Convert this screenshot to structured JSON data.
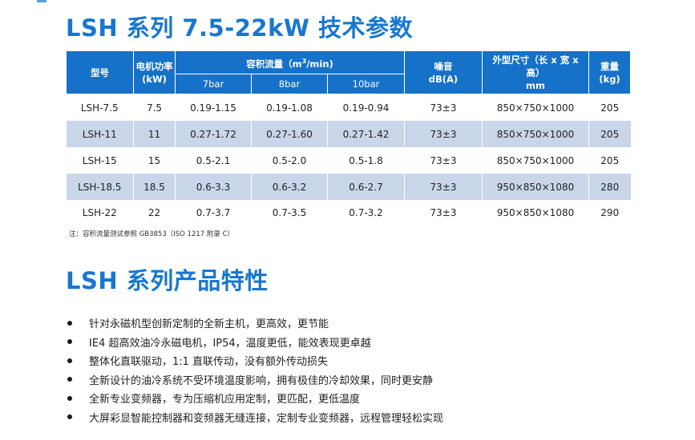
{
  "title1": "LSH 系列 7.5-22kW 技术参数",
  "title2": "LSH 系列产品特性",
  "table": {
    "headers": {
      "model": "型号",
      "power": "电机功率",
      "power_unit": "(kW)",
      "flow_prefix": "容积流量（m",
      "flow_sup": "3",
      "flow_suffix": "/min)",
      "noise": "噪音",
      "noise_unit": "dB(A)",
      "dims": "外型尺寸（长 x 宽 x 高）",
      "dims_unit": "mm",
      "weight": "重量",
      "weight_unit": "(kg)",
      "p7": "7bar",
      "p8": "8bar",
      "p10": "10bar"
    },
    "rows": [
      {
        "model": "LSH-7.5",
        "power": "7.5",
        "f7": "0.19-1.15",
        "f8": "0.19-1.08",
        "f10": "0.19-0.94",
        "noise": "73±3",
        "dims": "850×750×1000",
        "weight": "205"
      },
      {
        "model": "LSH-11",
        "power": "11",
        "f7": "0.27-1.72",
        "f8": "0.27-1.60",
        "f10": "0.27-1.42",
        "noise": "73±3",
        "dims": "850×750×1000",
        "weight": "205"
      },
      {
        "model": "LSH-15",
        "power": "15",
        "f7": "0.5-2.1",
        "f8": "0.5-2.0",
        "f10": "0.5-1.8",
        "noise": "73±3",
        "dims": "850×750×1000",
        "weight": "205"
      },
      {
        "model": "LSH-18.5",
        "power": "18.5",
        "f7": "0.6-3.3",
        "f8": "0.6-3.2",
        "f10": "0.6-2.7",
        "noise": "73±3",
        "dims": "950×850×1080",
        "weight": "280"
      },
      {
        "model": "LSH-22",
        "power": "22",
        "f7": "0.7-3.7",
        "f8": "0.7-3.5",
        "f10": "0.7-3.2",
        "noise": "73±3",
        "dims": "950×850×1080",
        "weight": "290"
      }
    ]
  },
  "note": "注：容积流量测试参照 GB3853（ISO 1217 附录 C）",
  "features": [
    "针对永磁机型创新定制的全新主机，更高效，更节能",
    "IE4 超高效油冷永磁电机，IP54，温度更低，能效表现更卓越",
    "整体化直联驱动，1:1 直联传动，没有额外传动损失",
    "全新设计的油冷系统不受环境温度影响，拥有极佳的冷却效果，同时更安静",
    "全新专业变频器，专为压缩机应用定制，更匹配，更低温度",
    "大屏彩显智能控制器和变频器无缝连接，定制专业变频器，远程管理轻松实现"
  ],
  "colors": {
    "accent": "#1877cf",
    "header_bg": "#1671c9",
    "row_shade": "#c9d6ea"
  }
}
